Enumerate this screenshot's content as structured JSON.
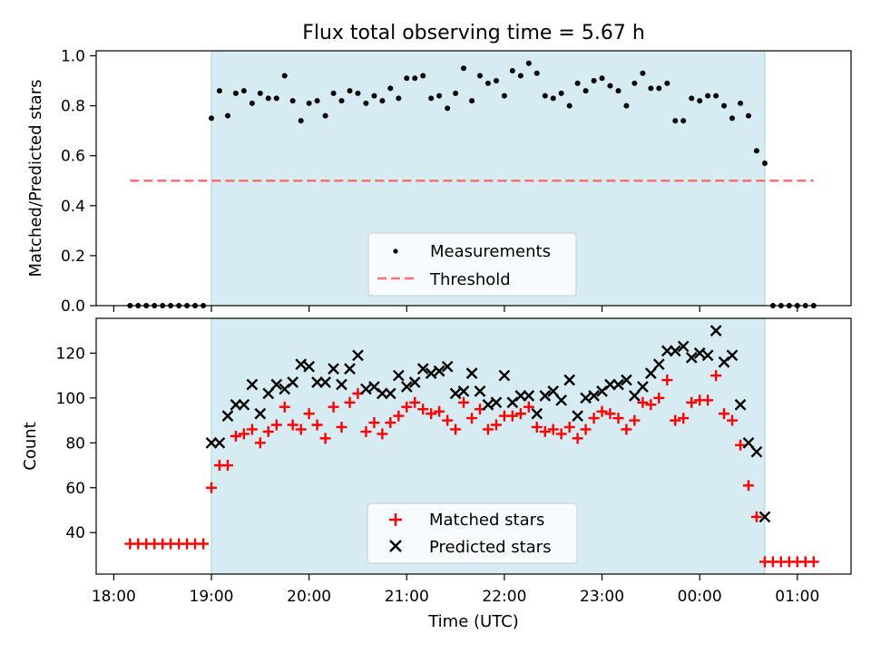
{
  "title": "Flux total observing time = 5.67 h",
  "chart_data": [
    {
      "type": "scatter",
      "panel": "top",
      "ylabel": "Matched/Predicted stars",
      "xlabel": "",
      "ylim": [
        0,
        1.02
      ],
      "xlim_hours": [
        17.82,
        25.55
      ],
      "yticks": [
        0.0,
        0.2,
        0.4,
        0.6,
        0.8,
        1.0
      ],
      "ytick_labels": [
        "0.0",
        "0.2",
        "0.4",
        "0.6",
        "0.8",
        "1.0"
      ],
      "observing_window_hours": [
        19.0,
        24.667
      ],
      "legend_position": "bottom-center",
      "series": [
        {
          "name": "Measurements",
          "style": "dots",
          "color": "#000000",
          "x": [
            18.167,
            18.25,
            18.333,
            18.417,
            18.5,
            18.583,
            18.667,
            18.75,
            18.833,
            18.917,
            19.0,
            19.083,
            19.167,
            19.25,
            19.333,
            19.417,
            19.5,
            19.583,
            19.667,
            19.75,
            19.833,
            19.917,
            20.0,
            20.083,
            20.167,
            20.25,
            20.333,
            20.417,
            20.5,
            20.583,
            20.667,
            20.75,
            20.833,
            20.917,
            21.0,
            21.083,
            21.167,
            21.25,
            21.333,
            21.417,
            21.5,
            21.583,
            21.667,
            21.75,
            21.833,
            21.917,
            22.0,
            22.083,
            22.167,
            22.25,
            22.333,
            22.417,
            22.5,
            22.583,
            22.667,
            22.75,
            22.833,
            22.917,
            23.0,
            23.083,
            23.167,
            23.25,
            23.333,
            23.417,
            23.5,
            23.583,
            23.667,
            23.75,
            23.833,
            23.917,
            24.0,
            24.083,
            24.167,
            24.25,
            24.333,
            24.417,
            24.5,
            24.583,
            24.667,
            24.75,
            24.833,
            24.917,
            25.0,
            25.083,
            25.167
          ],
          "y": [
            0,
            0,
            0,
            0,
            0,
            0,
            0,
            0,
            0,
            0,
            0.75,
            0.86,
            0.76,
            0.85,
            0.86,
            0.81,
            0.85,
            0.83,
            0.83,
            0.92,
            0.82,
            0.74,
            0.81,
            0.82,
            0.76,
            0.85,
            0.82,
            0.86,
            0.85,
            0.81,
            0.84,
            0.82,
            0.87,
            0.83,
            0.91,
            0.91,
            0.92,
            0.83,
            0.84,
            0.79,
            0.85,
            0.95,
            0.82,
            0.92,
            0.89,
            0.9,
            0.84,
            0.94,
            0.92,
            0.97,
            0.93,
            0.84,
            0.83,
            0.85,
            0.8,
            0.89,
            0.86,
            0.9,
            0.91,
            0.88,
            0.86,
            0.8,
            0.89,
            0.93,
            0.87,
            0.87,
            0.89,
            0.74,
            0.74,
            0.83,
            0.82,
            0.84,
            0.84,
            0.8,
            0.75,
            0.81,
            0.76,
            0.62,
            0.57,
            0,
            0,
            0,
            0,
            0,
            0
          ]
        },
        {
          "name": "Threshold",
          "style": "dashed",
          "color": "#f87171",
          "x": [
            18.167,
            25.167
          ],
          "y": [
            0.5,
            0.5
          ]
        }
      ]
    },
    {
      "type": "scatter",
      "panel": "bottom",
      "ylabel": "Count",
      "xlabel": "Time (UTC)",
      "ylim": [
        21.5,
        135.5
      ],
      "xlim_hours": [
        17.82,
        25.55
      ],
      "yticks": [
        40,
        60,
        80,
        100,
        120
      ],
      "ytick_labels": [
        "40",
        "60",
        "80",
        "100",
        "120"
      ],
      "xticks_hours": [
        18,
        19,
        20,
        21,
        22,
        23,
        24,
        25
      ],
      "xtick_labels": [
        "18:00",
        "19:00",
        "20:00",
        "21:00",
        "22:00",
        "23:00",
        "00:00",
        "01:00"
      ],
      "observing_window_hours": [
        19.0,
        24.667
      ],
      "legend_position": "bottom-center",
      "series": [
        {
          "name": "Matched stars",
          "marker": "plus",
          "color": "#ff0000",
          "x": [
            18.167,
            18.25,
            18.333,
            18.417,
            18.5,
            18.583,
            18.667,
            18.75,
            18.833,
            18.917,
            19.0,
            19.083,
            19.167,
            19.25,
            19.333,
            19.417,
            19.5,
            19.583,
            19.667,
            19.75,
            19.833,
            19.917,
            20.0,
            20.083,
            20.167,
            20.25,
            20.333,
            20.417,
            20.5,
            20.583,
            20.667,
            20.75,
            20.833,
            20.917,
            21.0,
            21.083,
            21.167,
            21.25,
            21.333,
            21.417,
            21.5,
            21.583,
            21.667,
            21.75,
            21.833,
            21.917,
            22.0,
            22.083,
            22.167,
            22.25,
            22.333,
            22.417,
            22.5,
            22.583,
            22.667,
            22.75,
            22.833,
            22.917,
            23.0,
            23.083,
            23.167,
            23.25,
            23.333,
            23.417,
            23.5,
            23.583,
            23.667,
            23.75,
            23.833,
            23.917,
            24.0,
            24.083,
            24.167,
            24.25,
            24.333,
            24.417,
            24.5,
            24.583,
            24.667,
            24.75,
            24.833,
            24.917,
            25.0,
            25.083,
            25.167
          ],
          "y": [
            35,
            35,
            35,
            35,
            35,
            35,
            35,
            35,
            35,
            35,
            60,
            70,
            70,
            83,
            84,
            86,
            80,
            85,
            88,
            96,
            88,
            86,
            93,
            88,
            82,
            96,
            87,
            98,
            102,
            85,
            89,
            84,
            89,
            92,
            96,
            98,
            95,
            93,
            94,
            90,
            86,
            98,
            91,
            95,
            86,
            88,
            92,
            92,
            93,
            96,
            87,
            85,
            86,
            84,
            87,
            82,
            86,
            91,
            94,
            93,
            91,
            86,
            90,
            98,
            97,
            100,
            108,
            90,
            91,
            98,
            99,
            99,
            110,
            93,
            90,
            79,
            61,
            47,
            27,
            27,
            27,
            27,
            27,
            27,
            27
          ]
        },
        {
          "name": "Predicted stars",
          "marker": "x",
          "color": "#000000",
          "x": [
            19.0,
            19.083,
            19.167,
            19.25,
            19.333,
            19.417,
            19.5,
            19.583,
            19.667,
            19.75,
            19.833,
            19.917,
            20.0,
            20.083,
            20.167,
            20.25,
            20.333,
            20.417,
            20.5,
            20.583,
            20.667,
            20.75,
            20.833,
            20.917,
            21.0,
            21.083,
            21.167,
            21.25,
            21.333,
            21.417,
            21.5,
            21.583,
            21.667,
            21.75,
            21.833,
            21.917,
            22.0,
            22.083,
            22.167,
            22.25,
            22.333,
            22.417,
            22.5,
            22.583,
            22.667,
            22.75,
            22.833,
            22.917,
            23.0,
            23.083,
            23.167,
            23.25,
            23.333,
            23.417,
            23.5,
            23.583,
            23.667,
            23.75,
            23.833,
            23.917,
            24.0,
            24.083,
            24.167,
            24.25,
            24.333,
            24.417,
            24.5,
            24.583,
            24.667
          ],
          "y": [
            80,
            80,
            92,
            97,
            97,
            106,
            93,
            102,
            106,
            104,
            107,
            115,
            114,
            107,
            107,
            113,
            106,
            113,
            119,
            104,
            105,
            102,
            102,
            110,
            105,
            107,
            113,
            111,
            112,
            114,
            102,
            103,
            111,
            103,
            97,
            98,
            110,
            98,
            101,
            101,
            93,
            101,
            103,
            99,
            108,
            92,
            100,
            101,
            103,
            106,
            106,
            108,
            101,
            105,
            111,
            115,
            121,
            121,
            123,
            118,
            120,
            119,
            130,
            116,
            119,
            97,
            80,
            76,
            47
          ]
        }
      ]
    }
  ]
}
